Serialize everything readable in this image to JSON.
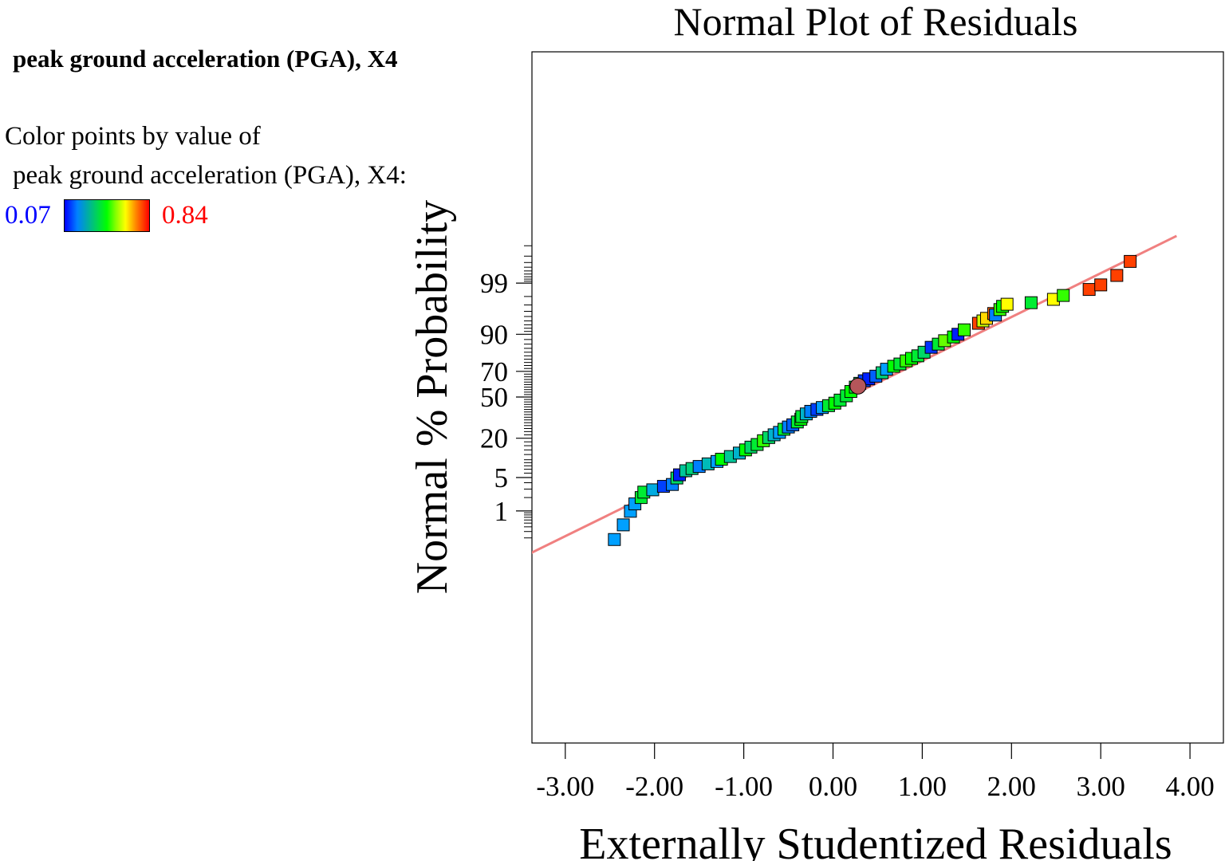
{
  "legend": {
    "title": "peak ground acceleration (PGA), X4",
    "line1": "Color points by value of",
    "line2": "peak ground acceleration (PGA), X4:",
    "min_label": "0.07",
    "max_label": "0.84",
    "min_color": "#0000ff",
    "max_color": "#ff0000"
  },
  "chart_data": {
    "type": "scatter",
    "title": "Normal Plot of Residuals",
    "xlabel": "Externally Studentized Residuals",
    "ylabel": "Normal % Probability",
    "xlim": [
      -3.38,
      4.38
    ],
    "y_scale": "normal-probability",
    "x_ticks": [
      "-3.00",
      "-2.00",
      "-1.00",
      "0.00",
      "1.00",
      "2.00",
      "3.00",
      "4.00"
    ],
    "x_tick_values": [
      -3,
      -2,
      -1,
      0,
      1,
      2,
      3,
      4
    ],
    "y_ticks": [
      "1",
      "5",
      "20",
      "50",
      "70",
      "90",
      "99"
    ],
    "y_tick_values": [
      1,
      5,
      20,
      50,
      70,
      90,
      99
    ],
    "reference_line": {
      "color": "#f08080",
      "points": [
        [
          -3.38,
          0.073
        ],
        [
          3.85,
          99.95
        ]
      ]
    },
    "colorscale": [
      "#0000ff",
      "#00a0ff",
      "#00ff00",
      "#ffff00",
      "#ff4000"
    ],
    "series": [
      {
        "marker": "square",
        "points": [
          {
            "x": -2.45,
            "y": 0.18,
            "c": 0.25
          },
          {
            "x": -2.35,
            "y": 0.45,
            "c": 0.25
          },
          {
            "x": -2.27,
            "y": 0.98,
            "c": 0.25
          },
          {
            "x": -2.22,
            "y": 1.45,
            "c": 0.25
          },
          {
            "x": -2.15,
            "y": 2.0,
            "c": 0.45
          },
          {
            "x": -2.12,
            "y": 2.6,
            "c": 0.45
          },
          {
            "x": -2.02,
            "y": 2.9,
            "c": 0.28
          },
          {
            "x": -1.9,
            "y": 3.4,
            "c": 0.1
          },
          {
            "x": -1.8,
            "y": 3.7,
            "c": 0.2
          },
          {
            "x": -1.75,
            "y": 4.9,
            "c": 0.4
          },
          {
            "x": -1.72,
            "y": 5.6,
            "c": 0.05
          },
          {
            "x": -1.65,
            "y": 6.6,
            "c": 0.35
          },
          {
            "x": -1.58,
            "y": 7.2,
            "c": 0.38
          },
          {
            "x": -1.5,
            "y": 7.8,
            "c": 0.2
          },
          {
            "x": -1.4,
            "y": 8.6,
            "c": 0.32
          },
          {
            "x": -1.3,
            "y": 9.4,
            "c": 0.25
          },
          {
            "x": -1.25,
            "y": 10.2,
            "c": 0.5
          },
          {
            "x": -1.15,
            "y": 11.2,
            "c": 0.35
          },
          {
            "x": -1.05,
            "y": 12.6,
            "c": 0.3
          },
          {
            "x": -0.98,
            "y": 14.0,
            "c": 0.5
          },
          {
            "x": -0.92,
            "y": 15.3,
            "c": 0.4
          },
          {
            "x": -0.85,
            "y": 16.6,
            "c": 0.45
          },
          {
            "x": -0.78,
            "y": 18.6,
            "c": 0.55
          },
          {
            "x": -0.72,
            "y": 20.4,
            "c": 0.4
          },
          {
            "x": -0.66,
            "y": 22.0,
            "c": 0.3
          },
          {
            "x": -0.6,
            "y": 23.5,
            "c": 0.25
          },
          {
            "x": -0.55,
            "y": 25.5,
            "c": 0.45
          },
          {
            "x": -0.5,
            "y": 27.0,
            "c": 0.2
          },
          {
            "x": -0.45,
            "y": 28.5,
            "c": 0.15
          },
          {
            "x": -0.4,
            "y": 30.5,
            "c": 0.45
          },
          {
            "x": -0.36,
            "y": 32.5,
            "c": 0.5
          },
          {
            "x": -0.35,
            "y": 34.5,
            "c": 0.45
          },
          {
            "x": -0.3,
            "y": 36.5,
            "c": 0.3
          },
          {
            "x": -0.25,
            "y": 38.5,
            "c": 0.2
          },
          {
            "x": -0.18,
            "y": 40.0,
            "c": 0.1
          },
          {
            "x": -0.12,
            "y": 41.5,
            "c": 0.25
          },
          {
            "x": -0.05,
            "y": 43.0,
            "c": 0.45
          },
          {
            "x": 0.02,
            "y": 45.0,
            "c": 0.5
          },
          {
            "x": 0.08,
            "y": 47.5,
            "c": 0.45
          },
          {
            "x": 0.15,
            "y": 51.0,
            "c": 0.45
          },
          {
            "x": 0.2,
            "y": 54.5,
            "c": 0.5
          },
          {
            "x": 0.25,
            "y": 58.0,
            "c": 0.45
          },
          {
            "x": 0.3,
            "y": 61.0,
            "c": 0.4
          },
          {
            "x": 0.35,
            "y": 63.0,
            "c": 0.1
          },
          {
            "x": 0.4,
            "y": 64.5,
            "c": 0.05
          },
          {
            "x": 0.48,
            "y": 66.5,
            "c": 0.15
          },
          {
            "x": 0.55,
            "y": 69.0,
            "c": 0.38
          },
          {
            "x": 0.6,
            "y": 71.5,
            "c": 0.25
          },
          {
            "x": 0.68,
            "y": 73.5,
            "c": 0.5
          },
          {
            "x": 0.75,
            "y": 75.0,
            "c": 0.45
          },
          {
            "x": 0.82,
            "y": 77.0,
            "c": 0.55
          },
          {
            "x": 0.88,
            "y": 78.5,
            "c": 0.5
          },
          {
            "x": 0.95,
            "y": 80.0,
            "c": 0.45
          },
          {
            "x": 1.02,
            "y": 82.0,
            "c": 0.4
          },
          {
            "x": 1.1,
            "y": 84.5,
            "c": 0.08
          },
          {
            "x": 1.18,
            "y": 86.0,
            "c": 0.45
          },
          {
            "x": 1.25,
            "y": 87.5,
            "c": 0.6
          },
          {
            "x": 1.35,
            "y": 89.0,
            "c": 0.5
          },
          {
            "x": 1.4,
            "y": 90.0,
            "c": 0.05
          },
          {
            "x": 1.47,
            "y": 91.5,
            "c": 0.55
          },
          {
            "x": 1.63,
            "y": 93.4,
            "c": 1.0
          },
          {
            "x": 1.68,
            "y": 94.0,
            "c": 0.7
          },
          {
            "x": 1.72,
            "y": 94.6,
            "c": 0.8
          },
          {
            "x": 1.8,
            "y": 95.6,
            "c": 0.95
          },
          {
            "x": 1.82,
            "y": 95.3,
            "c": 0.2
          },
          {
            "x": 1.87,
            "y": 96.3,
            "c": 0.55
          },
          {
            "x": 1.9,
            "y": 96.8,
            "c": 0.5
          },
          {
            "x": 1.95,
            "y": 97.1,
            "c": 0.75
          },
          {
            "x": 2.22,
            "y": 97.3,
            "c": 0.45
          },
          {
            "x": 2.47,
            "y": 97.7,
            "c": 0.75
          },
          {
            "x": 2.58,
            "y": 98.1,
            "c": 0.55
          },
          {
            "x": 2.87,
            "y": 98.6,
            "c": 1.0
          },
          {
            "x": 3.0,
            "y": 98.9,
            "c": 1.0
          },
          {
            "x": 3.18,
            "y": 99.35,
            "c": 1.0
          },
          {
            "x": 3.33,
            "y": 99.72,
            "c": 1.0
          }
        ]
      },
      {
        "marker": "circle",
        "points": [
          {
            "x": 0.28,
            "y": 58.8,
            "c": 0.0
          }
        ],
        "color": "#b5565a"
      }
    ]
  }
}
